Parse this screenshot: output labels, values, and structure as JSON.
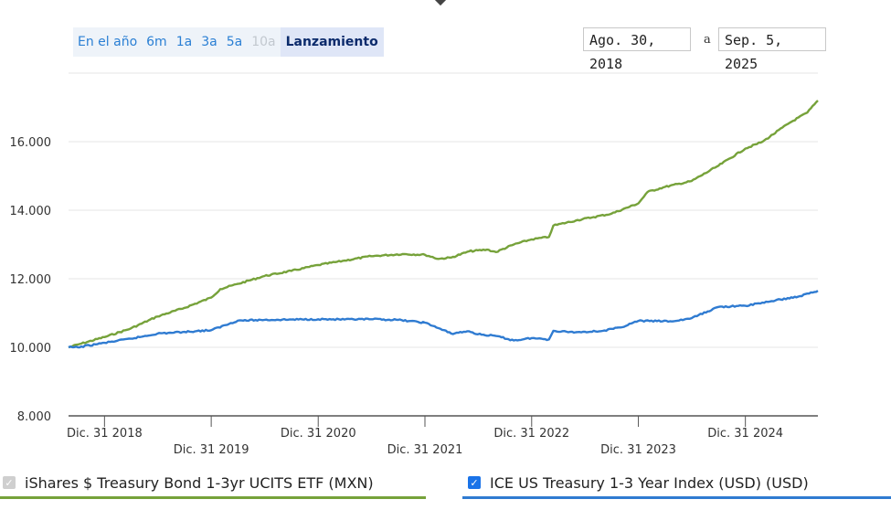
{
  "range_buttons": [
    {
      "label": "En el año",
      "state": "normal"
    },
    {
      "label": "6m",
      "state": "normal"
    },
    {
      "label": "1a",
      "state": "normal"
    },
    {
      "label": "3a",
      "state": "normal"
    },
    {
      "label": "5a",
      "state": "normal"
    },
    {
      "label": "10a",
      "state": "disabled"
    },
    {
      "label": "Lanzamiento",
      "state": "active"
    }
  ],
  "date_range": {
    "start": "Ago. 30, 2018",
    "separator": "a",
    "end": "Sep. 5, 2025"
  },
  "legend": [
    {
      "label": "iShares $ Treasury Bond 1-3yr UCITS ETF (MXN)",
      "checked": true,
      "enabled": false,
      "color": "#76a23a"
    },
    {
      "label": "ICE US Treasury 1-3 Year Index (USD) (USD)",
      "checked": true,
      "enabled": true,
      "color": "#2f7bd1"
    }
  ],
  "chart_data": {
    "type": "line",
    "ylim": [
      8000,
      18000
    ],
    "y_ticks": [
      8000,
      10000,
      12000,
      14000,
      16000
    ],
    "y_tick_labels": [
      "8.000",
      "10.000",
      "12.000",
      "14.000",
      "16.000"
    ],
    "x_range": [
      "2018-08-30",
      "2025-09-05"
    ],
    "x_ticks": [
      {
        "date": "2018-12-31",
        "label": "Dic. 31 2018"
      },
      {
        "date": "2019-12-31",
        "label": "Dic. 31 2019"
      },
      {
        "date": "2020-12-31",
        "label": "Dic. 31 2020"
      },
      {
        "date": "2021-12-31",
        "label": "Dic. 31 2021"
      },
      {
        "date": "2022-12-31",
        "label": "Dic. 31 2022"
      },
      {
        "date": "2023-12-31",
        "label": "Dic. 31 2023"
      },
      {
        "date": "2024-12-31",
        "label": "Dic. 31 2024"
      }
    ],
    "grid": true,
    "series": [
      {
        "name": "iShares $ Treasury Bond 1-3yr UCITS ETF (MXN)",
        "color": "#76a23a",
        "points": [
          [
            "2018-08-30",
            10000
          ],
          [
            "2018-10-01",
            10080
          ],
          [
            "2018-12-31",
            10300
          ],
          [
            "2019-03-31",
            10550
          ],
          [
            "2019-06-30",
            10900
          ],
          [
            "2019-09-30",
            11150
          ],
          [
            "2019-12-31",
            11450
          ],
          [
            "2020-01-31",
            11700
          ],
          [
            "2020-03-31",
            11850
          ],
          [
            "2020-06-30",
            12080
          ],
          [
            "2020-09-30",
            12230
          ],
          [
            "2020-12-31",
            12400
          ],
          [
            "2021-03-31",
            12530
          ],
          [
            "2021-06-30",
            12660
          ],
          [
            "2021-10-15",
            12720
          ],
          [
            "2021-12-31",
            12700
          ],
          [
            "2022-02-15",
            12580
          ],
          [
            "2022-03-31",
            12620
          ],
          [
            "2022-05-31",
            12800
          ],
          [
            "2022-07-31",
            12850
          ],
          [
            "2022-08-31",
            12780
          ],
          [
            "2022-10-31",
            13000
          ],
          [
            "2022-12-31",
            13150
          ],
          [
            "2023-02-28",
            13220
          ],
          [
            "2023-03-15",
            13550
          ],
          [
            "2023-05-31",
            13700
          ],
          [
            "2023-07-31",
            13800
          ],
          [
            "2023-09-30",
            13900
          ],
          [
            "2023-12-31",
            14200
          ],
          [
            "2024-01-31",
            14530
          ],
          [
            "2024-03-31",
            14680
          ],
          [
            "2024-06-30",
            14850
          ],
          [
            "2024-09-30",
            15300
          ],
          [
            "2024-12-31",
            15800
          ],
          [
            "2025-02-28",
            16000
          ],
          [
            "2025-05-31",
            16550
          ],
          [
            "2025-07-31",
            16850
          ],
          [
            "2025-09-05",
            17200
          ]
        ]
      },
      {
        "name": "ICE US Treasury 1-3 Year Index (USD) (USD)",
        "color": "#2f7bd1",
        "points": [
          [
            "2018-08-30",
            10000
          ],
          [
            "2018-10-01",
            10000
          ],
          [
            "2018-12-31",
            10130
          ],
          [
            "2019-03-31",
            10250
          ],
          [
            "2019-06-30",
            10400
          ],
          [
            "2019-09-30",
            10450
          ],
          [
            "2019-12-31",
            10500
          ],
          [
            "2020-03-31",
            10780
          ],
          [
            "2020-06-30",
            10800
          ],
          [
            "2020-09-30",
            10810
          ],
          [
            "2020-12-31",
            10820
          ],
          [
            "2021-03-31",
            10810
          ],
          [
            "2021-06-30",
            10820
          ],
          [
            "2021-09-30",
            10800
          ],
          [
            "2021-12-31",
            10720
          ],
          [
            "2022-02-15",
            10560
          ],
          [
            "2022-03-31",
            10400
          ],
          [
            "2022-05-31",
            10470
          ],
          [
            "2022-06-30",
            10380
          ],
          [
            "2022-08-31",
            10330
          ],
          [
            "2022-10-31",
            10200
          ],
          [
            "2022-12-31",
            10270
          ],
          [
            "2023-02-28",
            10230
          ],
          [
            "2023-03-15",
            10480
          ],
          [
            "2023-05-31",
            10440
          ],
          [
            "2023-08-31",
            10480
          ],
          [
            "2023-10-31",
            10580
          ],
          [
            "2023-12-31",
            10770
          ],
          [
            "2024-04-30",
            10760
          ],
          [
            "2024-06-30",
            10850
          ],
          [
            "2024-09-30",
            11180
          ],
          [
            "2024-12-31",
            11210
          ],
          [
            "2025-03-31",
            11350
          ],
          [
            "2025-06-30",
            11480
          ],
          [
            "2025-09-05",
            11650
          ]
        ]
      }
    ]
  }
}
